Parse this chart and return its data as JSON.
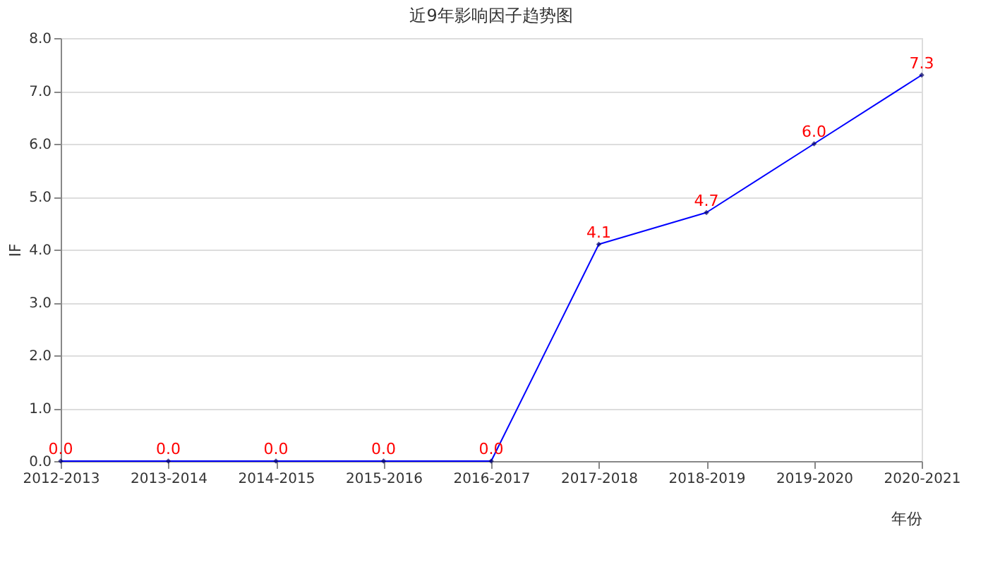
{
  "chart_data": {
    "type": "line",
    "title": "近9年影响因子趋势图",
    "xlabel": "年份",
    "ylabel": "IF",
    "categories": [
      "2012-2013",
      "2013-2014",
      "2014-2015",
      "2015-2016",
      "2016-2017",
      "2017-2018",
      "2018-2019",
      "2019-2020",
      "2020-2021"
    ],
    "series": [
      {
        "color": "#0000ff",
        "values": [
          0,
          0,
          0,
          0,
          0,
          4.1,
          4.7,
          6.0,
          7.3
        ]
      }
    ],
    "value_labels": [
      "0.0",
      "0.0",
      "0.0",
      "0.0",
      "0.0",
      "4.1",
      "4.7",
      "6.0",
      "7.3"
    ],
    "ylim": [
      0,
      8
    ],
    "yticks": [
      {
        "value": 0,
        "label": "0.0"
      },
      {
        "value": 1,
        "label": "1.0"
      },
      {
        "value": 2,
        "label": "2.0"
      },
      {
        "value": 3,
        "label": "3.0"
      },
      {
        "value": 4,
        "label": "4.0"
      },
      {
        "value": 5,
        "label": "5.0"
      },
      {
        "value": 6,
        "label": "6.0"
      },
      {
        "value": 7,
        "label": "7.0"
      },
      {
        "value": 8,
        "label": "8.0"
      }
    ],
    "grid": "y",
    "marker": "diamond",
    "line_style": "solid"
  }
}
